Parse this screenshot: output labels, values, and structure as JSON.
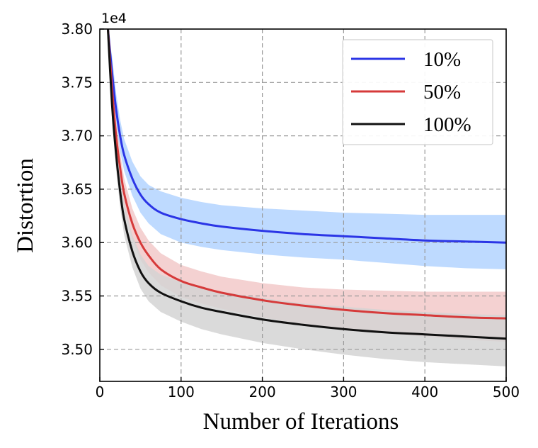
{
  "chart_data": {
    "type": "line",
    "title": "",
    "xlabel": "Number of Iterations",
    "ylabel": "Distortion",
    "y_offset_label": "1e4",
    "xlim": [
      0,
      500
    ],
    "ylim": [
      3.47,
      3.8
    ],
    "xticks": [
      0,
      100,
      200,
      300,
      400,
      500
    ],
    "xtick_labels": [
      "0",
      "100",
      "200",
      "300",
      "400",
      "500"
    ],
    "yticks": [
      3.5,
      3.55,
      3.6,
      3.65,
      3.7,
      3.75,
      3.8
    ],
    "ytick_labels": [
      "3.50",
      "3.55",
      "3.60",
      "3.65",
      "3.70",
      "3.75",
      "3.80"
    ],
    "grid": true,
    "legend_position": "top-right",
    "x": [
      10,
      15,
      20,
      25,
      30,
      40,
      50,
      60,
      75,
      100,
      125,
      150,
      200,
      250,
      300,
      350,
      400,
      450,
      500
    ],
    "series": [
      {
        "name": "10%",
        "color": "#2b35e6",
        "band_color": "#b3d4ff",
        "values": [
          3.8,
          3.76,
          3.725,
          3.7,
          3.682,
          3.66,
          3.645,
          3.636,
          3.628,
          3.622,
          3.618,
          3.615,
          3.611,
          3.608,
          3.606,
          3.604,
          3.602,
          3.601,
          3.6
        ],
        "upper": [
          3.8,
          3.775,
          3.74,
          3.715,
          3.697,
          3.676,
          3.662,
          3.654,
          3.648,
          3.642,
          3.638,
          3.635,
          3.632,
          3.63,
          3.628,
          3.627,
          3.626,
          3.626,
          3.626
        ],
        "lower": [
          3.8,
          3.745,
          3.71,
          3.685,
          3.667,
          3.644,
          3.628,
          3.618,
          3.608,
          3.6,
          3.596,
          3.593,
          3.589,
          3.586,
          3.584,
          3.581,
          3.578,
          3.576,
          3.575
        ]
      },
      {
        "name": "50%",
        "color": "#d63a3a",
        "band_color": "#f2c9c9",
        "values": [
          3.8,
          3.745,
          3.7,
          3.67,
          3.646,
          3.618,
          3.6,
          3.588,
          3.575,
          3.564,
          3.558,
          3.553,
          3.546,
          3.541,
          3.537,
          3.534,
          3.532,
          3.53,
          3.529
        ],
        "upper": [
          3.8,
          3.76,
          3.715,
          3.684,
          3.66,
          3.632,
          3.614,
          3.602,
          3.59,
          3.579,
          3.573,
          3.568,
          3.562,
          3.558,
          3.556,
          3.555,
          3.554,
          3.554,
          3.554
        ],
        "lower": [
          3.8,
          3.73,
          3.685,
          3.655,
          3.632,
          3.603,
          3.584,
          3.572,
          3.56,
          3.549,
          3.543,
          3.538,
          3.53,
          3.524,
          3.519,
          3.515,
          3.512,
          3.509,
          3.507
        ]
      },
      {
        "name": "100%",
        "color": "#111111",
        "band_color": "#d4d4d4",
        "values": [
          3.8,
          3.73,
          3.683,
          3.648,
          3.622,
          3.592,
          3.573,
          3.562,
          3.553,
          3.545,
          3.539,
          3.535,
          3.528,
          3.523,
          3.519,
          3.516,
          3.514,
          3.512,
          3.51
        ],
        "upper": [
          3.8,
          3.745,
          3.698,
          3.663,
          3.637,
          3.607,
          3.589,
          3.578,
          3.57,
          3.563,
          3.558,
          3.554,
          3.548,
          3.543,
          3.54,
          3.537,
          3.535,
          3.533,
          3.532
        ],
        "lower": [
          3.8,
          3.715,
          3.668,
          3.633,
          3.607,
          3.577,
          3.557,
          3.545,
          3.535,
          3.526,
          3.519,
          3.514,
          3.506,
          3.5,
          3.495,
          3.491,
          3.488,
          3.486,
          3.484
        ]
      }
    ]
  }
}
